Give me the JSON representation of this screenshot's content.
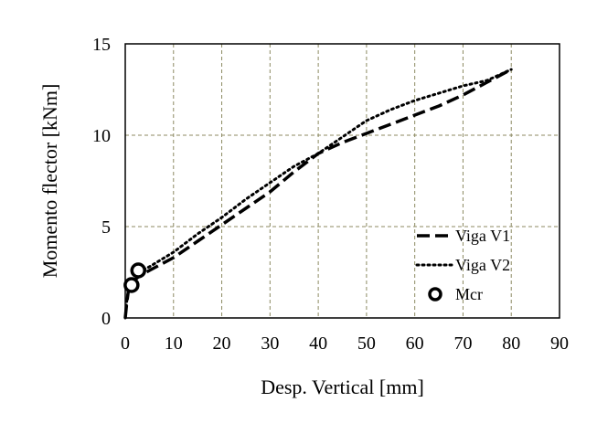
{
  "chart_data": {
    "type": "line",
    "title": "",
    "xlabel": "Desp. Vertical [mm]",
    "ylabel": "Momento flector [kNm]",
    "xlim": [
      0,
      90
    ],
    "ylim": [
      0,
      15
    ],
    "xticks": [
      "0",
      "10",
      "20",
      "30",
      "40",
      "50",
      "60",
      "70",
      "80",
      "90"
    ],
    "yticks": [
      "0",
      "5",
      "10",
      "15"
    ],
    "grid": true,
    "legend_position": "bottom-right",
    "series": [
      {
        "name": "Viga V1",
        "style": "dashed",
        "color": "#000000",
        "x": [
          0,
          0.3,
          0.6,
          1.0,
          1.5,
          3,
          5,
          10,
          15,
          20,
          25,
          30,
          35,
          38,
          40,
          45,
          50,
          55,
          60,
          65,
          70,
          75,
          80
        ],
        "y": [
          0,
          0.8,
          1.4,
          1.8,
          2.0,
          2.3,
          2.6,
          3.3,
          4.2,
          5.1,
          6.0,
          6.9,
          8.0,
          8.6,
          9.0,
          9.6,
          10.1,
          10.6,
          11.1,
          11.6,
          12.2,
          12.9,
          13.6
        ]
      },
      {
        "name": "Viga V2",
        "style": "dotted",
        "color": "#000000",
        "x": [
          0,
          0.3,
          0.7,
          1.5,
          2.5,
          5,
          10,
          15,
          20,
          25,
          30,
          35,
          40,
          45,
          50,
          55,
          60,
          65,
          70,
          75,
          80
        ],
        "y": [
          0,
          0.9,
          1.6,
          2.1,
          2.5,
          2.8,
          3.6,
          4.6,
          5.5,
          6.5,
          7.4,
          8.3,
          9.0,
          9.9,
          10.8,
          11.4,
          11.9,
          12.3,
          12.7,
          13.0,
          13.6
        ]
      },
      {
        "name": "Mcr",
        "style": "marker",
        "marker": "open-circle",
        "color": "#000000",
        "x": [
          1.3,
          2.7
        ],
        "y": [
          1.8,
          2.6
        ]
      }
    ]
  }
}
